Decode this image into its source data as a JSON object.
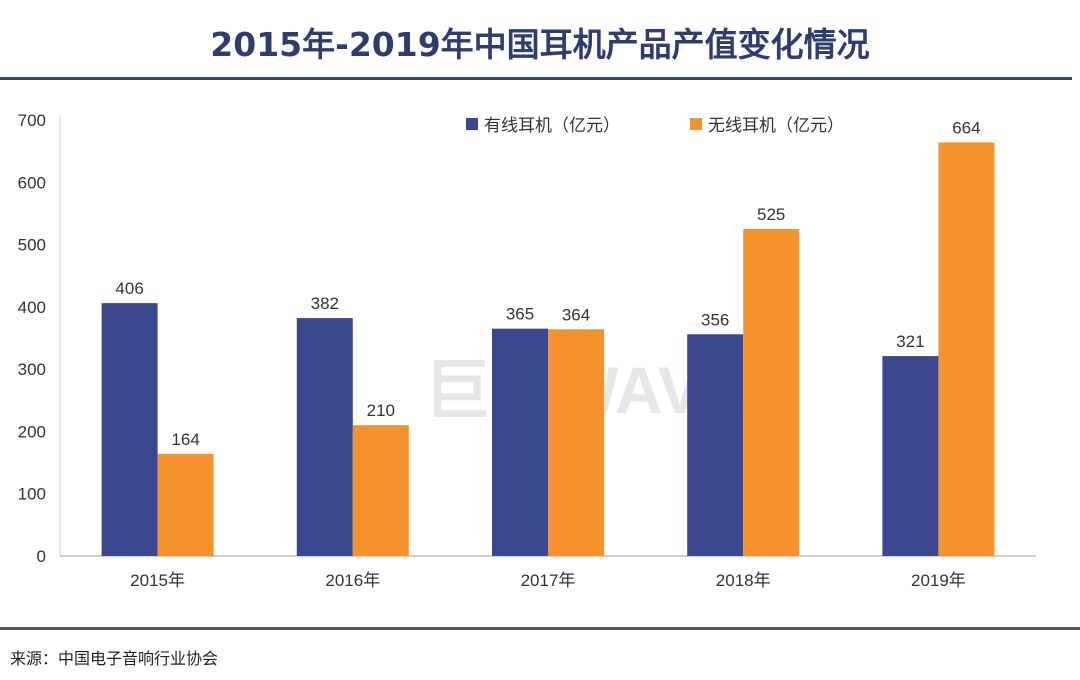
{
  "chart_data": {
    "type": "bar",
    "title": "2015年-2019年中国耳机产品产值变化情况",
    "categories": [
      "2015年",
      "2016年",
      "2017年",
      "2018年",
      "2019年"
    ],
    "series": [
      {
        "name": "有线耳机（亿元）",
        "values": [
          406,
          382,
          365,
          356,
          321
        ],
        "color": "#3b4890"
      },
      {
        "name": "无线耳机（亿元）",
        "values": [
          164,
          210,
          364,
          525,
          664
        ],
        "color": "#f5922b"
      }
    ],
    "yticks": [
      0,
      100,
      200,
      300,
      400,
      500,
      600,
      700
    ],
    "ylim": [
      0,
      700
    ],
    "xlabel": "",
    "ylabel": "",
    "legend": "top-right",
    "grid": false,
    "data_labels": true
  },
  "source": "来源：中国电子音响行业协会",
  "watermark": "巨潮WAVE"
}
